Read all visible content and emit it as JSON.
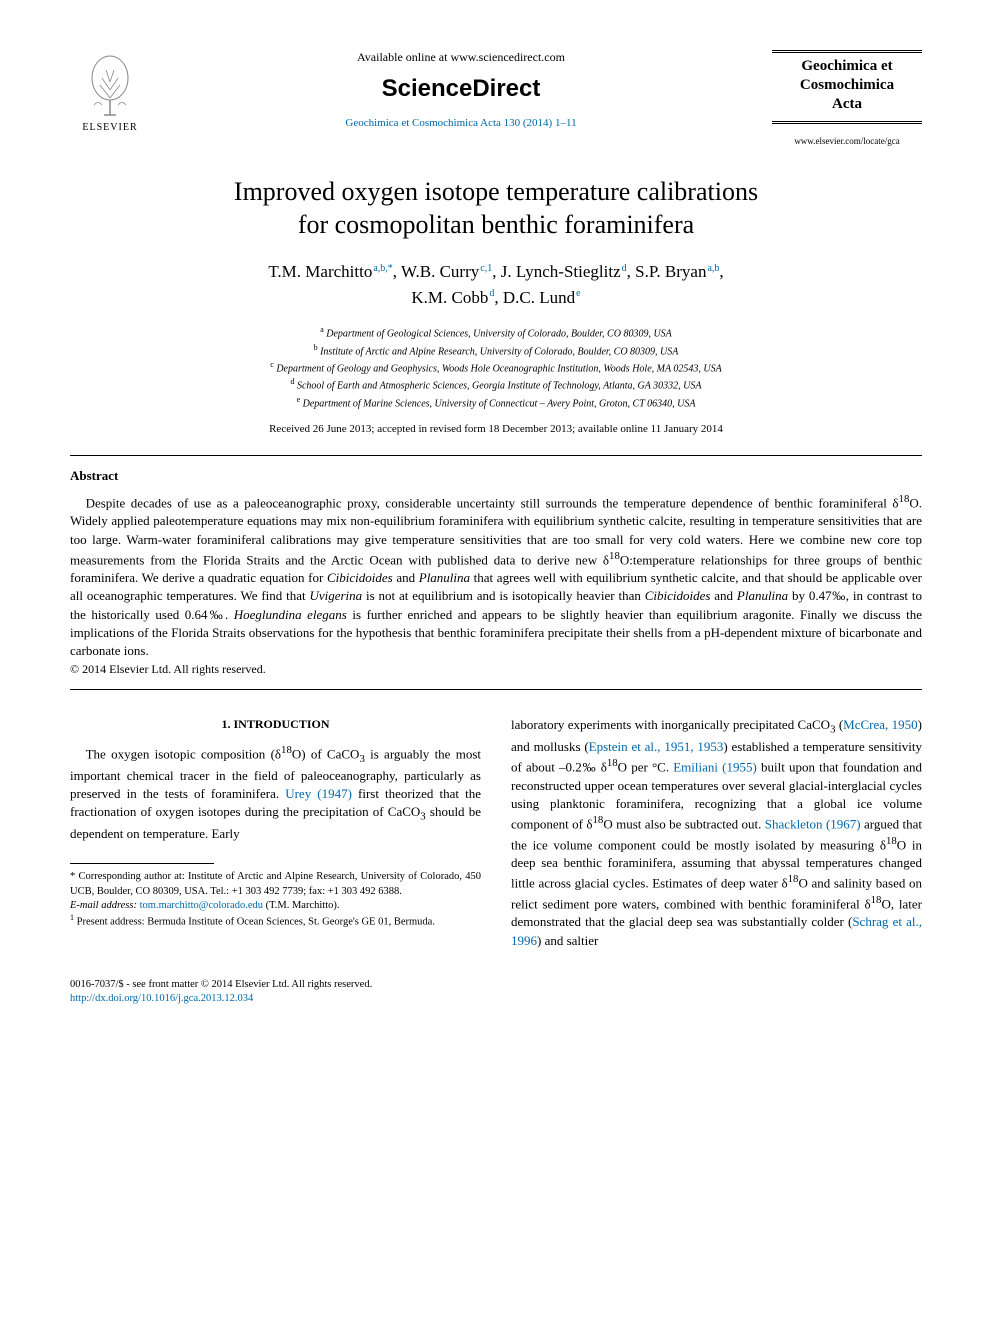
{
  "header": {
    "elsevier_label": "ELSEVIER",
    "available_online": "Available online at www.sciencedirect.com",
    "sciencedirect": "ScienceDirect",
    "citation": "Geochimica et Cosmochimica Acta 130 (2014) 1–11",
    "journal_title_1": "Geochimica et",
    "journal_title_2": "Cosmochimica",
    "journal_title_3": "Acta",
    "journal_url": "www.elsevier.com/locate/gca"
  },
  "title_1": "Improved oxygen isotope temperature calibrations",
  "title_2": "for cosmopolitan benthic foraminifera",
  "authors": [
    {
      "name": "T.M. Marchitto",
      "sup": "a,b,*"
    },
    {
      "name": "W.B. Curry",
      "sup": "c,1"
    },
    {
      "name": "J. Lynch-Stieglitz",
      "sup": "d"
    },
    {
      "name": "S.P. Bryan",
      "sup": "a,b"
    },
    {
      "name": "K.M. Cobb",
      "sup": "d"
    },
    {
      "name": "D.C. Lund",
      "sup": "e"
    }
  ],
  "affiliations": [
    {
      "sup": "a",
      "text": "Department of Geological Sciences, University of Colorado, Boulder, CO 80309, USA"
    },
    {
      "sup": "b",
      "text": "Institute of Arctic and Alpine Research, University of Colorado, Boulder, CO 80309, USA"
    },
    {
      "sup": "c",
      "text": "Department of Geology and Geophysics, Woods Hole Oceanographic Institution, Woods Hole, MA 02543, USA"
    },
    {
      "sup": "d",
      "text": "School of Earth and Atmospheric Sciences, Georgia Institute of Technology, Atlanta, GA 30332, USA"
    },
    {
      "sup": "e",
      "text": "Department of Marine Sciences, University of Connecticut – Avery Point, Groton, CT 06340, USA"
    }
  ],
  "received": "Received 26 June 2013; accepted in revised form 18 December 2013; available online 11 January 2014",
  "abstract": {
    "heading": "Abstract",
    "body_html": "Despite decades of use as a paleoceanographic proxy, considerable uncertainty still surrounds the temperature dependence of benthic foraminiferal δ<sup>18</sup>O. Widely applied paleotemperature equations may mix non-equilibrium foraminifera with equilibrium synthetic calcite, resulting in temperature sensitivities that are too large. Warm-water foraminiferal calibrations may give temperature sensitivities that are too small for very cold waters. Here we combine new core top measurements from the Florida Straits and the Arctic Ocean with published data to derive new δ<sup>18</sup>O:temperature relationships for three groups of benthic foraminifera. We derive a quadratic equation for <span class='ital'>Cibicidoides</span> and <span class='ital'>Planulina</span> that agrees well with equilibrium synthetic calcite, and that should be applicable over all oceanographic temperatures. We find that <span class='ital'>Uvigerina</span> is not at equilibrium and is isotopically heavier than <span class='ital'>Cibicidoides</span> and <span class='ital'>Planulina</span> by 0.47‰, in contrast to the historically used 0.64‰. <span class='ital'>Hoeglundina elegans</span> is further enriched and appears to be slightly heavier than equilibrium aragonite. Finally we discuss the implications of the Florida Straits observations for the hypothesis that benthic foraminifera precipitate their shells from a pH-dependent mixture of bicarbonate and carbonate ions.",
    "copyright": "© 2014 Elsevier Ltd. All rights reserved."
  },
  "section1": {
    "heading": "1. INTRODUCTION",
    "col1_html": "The oxygen isotopic composition (δ<sup>18</sup>O) of CaCO<sub>3</sub> is arguably the most important chemical tracer in the field of paleoceanography, particularly as preserved in the tests of foraminifera. <span class='link'>Urey (1947)</span> first theorized that the fractionation of oxygen isotopes during the precipitation of CaCO<sub>3</sub> should be dependent on temperature. Early",
    "col2_html": "laboratory experiments with inorganically precipitated CaCO<sub>3</sub> (<span class='link'>McCrea, 1950</span>) and mollusks (<span class='link'>Epstein et al., 1951, 1953</span>) established a temperature sensitivity of about –0.2‰ δ<sup>18</sup>O per °C. <span class='link'>Emiliani (1955)</span> built upon that foundation and reconstructed upper ocean temperatures over several glacial-interglacial cycles using planktonic foraminifera, recognizing that a global ice volume component of δ<sup>18</sup>O must also be subtracted out. <span class='link'>Shackleton (1967)</span> argued that the ice volume component could be mostly isolated by measuring δ<sup>18</sup>O in deep sea benthic foraminifera, assuming that abyssal temperatures changed little across glacial cycles. Estimates of deep water δ<sup>18</sup>O and salinity based on relict sediment pore waters, combined with benthic foraminiferal δ<sup>18</sup>O, later demonstrated that the glacial deep sea was substantially colder (<span class='link'>Schrag et al., 1996</span>) and saltier"
  },
  "footnotes": {
    "corr_label": "* Corresponding author at: Institute of Arctic and Alpine Research, University of Colorado, 450 UCB, Boulder, CO 80309, USA. Tel.: +1 303 492 7739; fax: +1 303 492 6388.",
    "email_label": "E-mail address:",
    "email_value": "tom.marchitto@colorado.edu",
    "email_who": "(T.M. Marchitto).",
    "present_label": "1",
    "present_text": "Present address: Bermuda Institute of Ocean Sciences, St. George's GE 01, Bermuda."
  },
  "bottom": {
    "line1": "0016-7037/$ - see front matter © 2014 Elsevier Ltd. All rights reserved.",
    "doi": "http://dx.doi.org/10.1016/j.gca.2013.12.034"
  }
}
